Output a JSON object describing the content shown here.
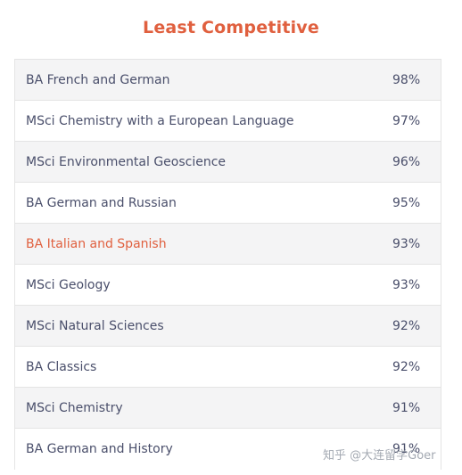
{
  "title": "Least Competitive",
  "rows": [
    {
      "course": "BA French and German",
      "rate": "98%"
    },
    {
      "course": "MSci Chemistry with a European Language",
      "rate": "97%"
    },
    {
      "course": "MSci Environmental Geoscience",
      "rate": "96%"
    },
    {
      "course": "BA German and Russian",
      "rate": "95%"
    },
    {
      "course": "BA Italian and Spanish",
      "rate": "93%"
    },
    {
      "course": "MSci Geology",
      "rate": "93%"
    },
    {
      "course": "MSci Natural Sciences",
      "rate": "92%"
    },
    {
      "course": "BA Classics",
      "rate": "92%"
    },
    {
      "course": "MSci Chemistry",
      "rate": "91%"
    },
    {
      "course": "BA German and History",
      "rate": "91%"
    }
  ],
  "watermark": "知乎 @大连留学Goer",
  "colors": {
    "accent": "#e0603f",
    "text": "#4a4f6b",
    "row_alt": "#f4f4f5"
  }
}
